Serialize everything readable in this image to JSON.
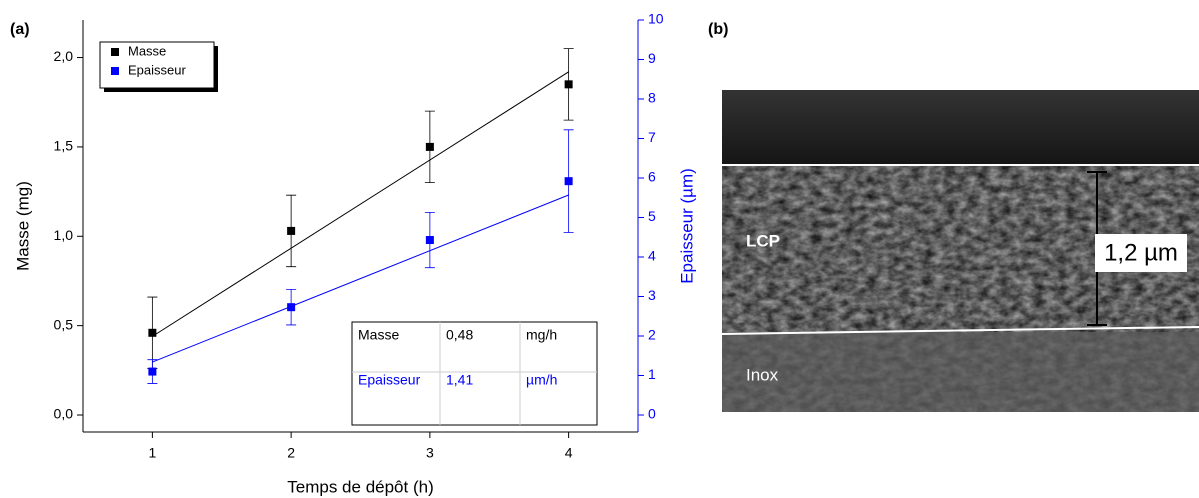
{
  "chart_data": {
    "type": "scatter",
    "panel_label": "(a)",
    "x_label": "Temps de dépôt (h)",
    "y_label": "Masse (mg)",
    "y2_label": "Epaisseur (µm)",
    "xlim": [
      0.5,
      4.5
    ],
    "xticks": [
      1,
      2,
      3,
      4
    ],
    "ylim": [
      -0.095,
      2.21
    ],
    "yticks": [
      {
        "value": 0,
        "label": "0,0"
      },
      {
        "value": 0.5,
        "label": "0,5"
      },
      {
        "value": 1,
        "label": "1,0"
      },
      {
        "value": 1.5,
        "label": "1,5"
      },
      {
        "value": 2,
        "label": "2,0"
      }
    ],
    "y2lim": [
      -0.43,
      10
    ],
    "y2ticks": [
      0,
      1,
      2,
      3,
      4,
      5,
      6,
      7,
      8,
      9,
      10
    ],
    "x": [
      1,
      2,
      3,
      4
    ],
    "series": [
      {
        "name": "Masse",
        "color": "#000000",
        "values": [
          0.46,
          1.03,
          1.5,
          1.85
        ],
        "errors": [
          0.2,
          0.2,
          0.2,
          0.2
        ],
        "fit_x": [
          1,
          4
        ],
        "fit": [
          0.44,
          1.92
        ]
      },
      {
        "name": "Epaisseur",
        "color": "#0000ff",
        "axis": "y2",
        "values": [
          1.1,
          2.73,
          4.43,
          5.92
        ],
        "errors": [
          0.3,
          0.45,
          0.7,
          1.3
        ],
        "fit_x": [
          1,
          4
        ],
        "fit": [
          1.34,
          5.57
        ]
      }
    ],
    "table": {
      "rows": [
        [
          "Masse",
          "0,48",
          "mg/h"
        ],
        [
          "Epaisseur",
          "1,41",
          "µm/h"
        ]
      ]
    }
  },
  "image": {
    "panel_label": "(b)",
    "labels": [
      "LCP",
      "Inox"
    ],
    "scale_label": "1,2 µm"
  }
}
